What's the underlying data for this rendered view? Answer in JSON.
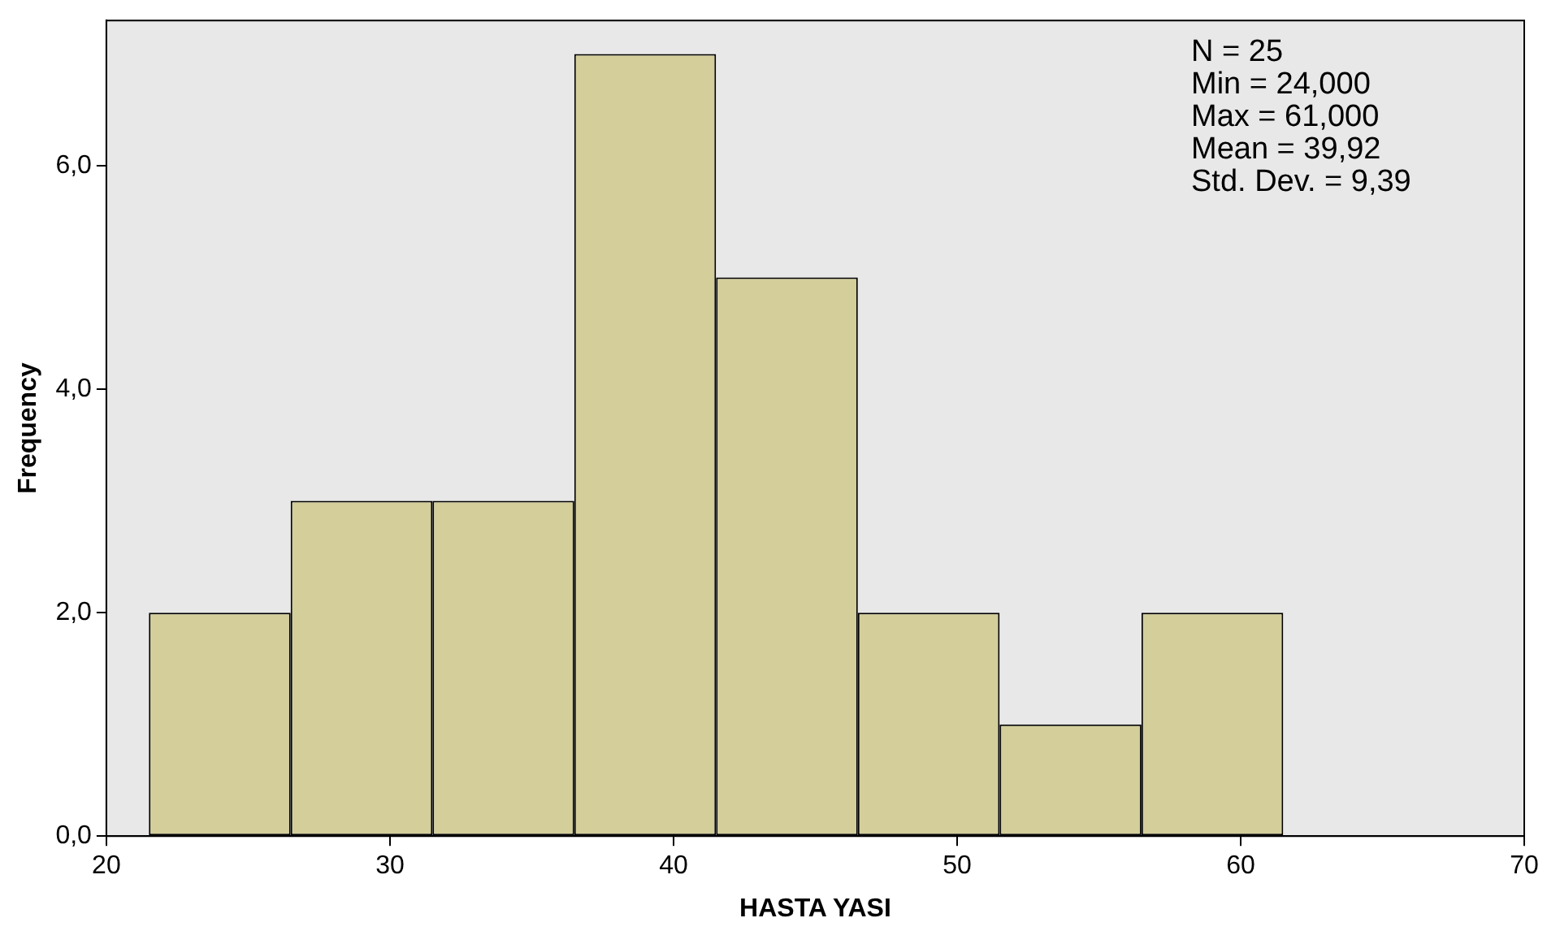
{
  "chart_data": {
    "type": "histogram",
    "xlabel": "HASTA YASI",
    "ylabel": "Frequency",
    "bins": [
      21.5,
      26.5,
      31.5,
      36.5,
      41.5,
      46.5,
      51.5,
      56.5,
      61.5
    ],
    "values": [
      2,
      3,
      3,
      7,
      5,
      2,
      1,
      2
    ],
    "color": "#d3ce9a",
    "xlim": [
      20,
      70
    ],
    "xticks": [
      20,
      30,
      40,
      50,
      60,
      70
    ],
    "ylim": [
      0,
      7.3
    ],
    "yticks": [
      {
        "value": 0,
        "label": "0,0"
      },
      {
        "value": 2,
        "label": "2,0"
      },
      {
        "value": 4,
        "label": "4,0"
      },
      {
        "value": 6,
        "label": "6,0"
      }
    ],
    "annotations": [
      "N = 25",
      "Min = 24,000",
      "Max = 61,000",
      "Mean = 39,92",
      "Std. Dev. = 9,39"
    ],
    "grid": false,
    "legend": false
  }
}
